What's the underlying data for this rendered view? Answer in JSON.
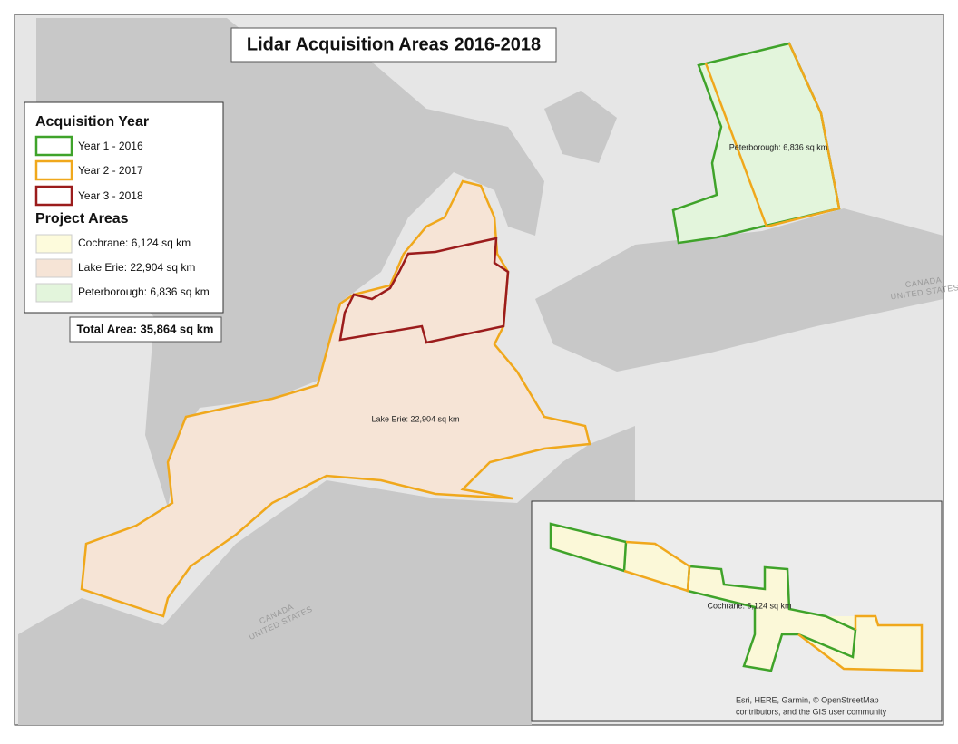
{
  "title": "Lidar Acquisition Areas 2016-2018",
  "legend": {
    "year_heading": "Acquisition Year",
    "years": [
      "Year 1 - 2016",
      "Year 2 - 2017",
      "Year 3 - 2018"
    ],
    "areas_heading": "Project Areas",
    "areas": [
      "Cochrane: 6,124 sq km",
      "Lake Erie: 22,904 sq km",
      "Peterborough: 6,836 sq km"
    ]
  },
  "total_area": "Total Area: 35,864 sq km",
  "map_labels": {
    "peterborough": "Peterborough: 6,836 sq km",
    "lake_erie": "Lake Erie: 22,904 sq km",
    "cochrane": "Cochrane: 6,124 sq km",
    "border_east": [
      "CANADA",
      "UNITED STATES"
    ],
    "border_west": [
      "CANADA",
      "UNITED STATES"
    ]
  },
  "attribution": [
    "Esri, HERE, Garmin, © OpenStreetMap",
    "contributors, and the GIS user community"
  ]
}
